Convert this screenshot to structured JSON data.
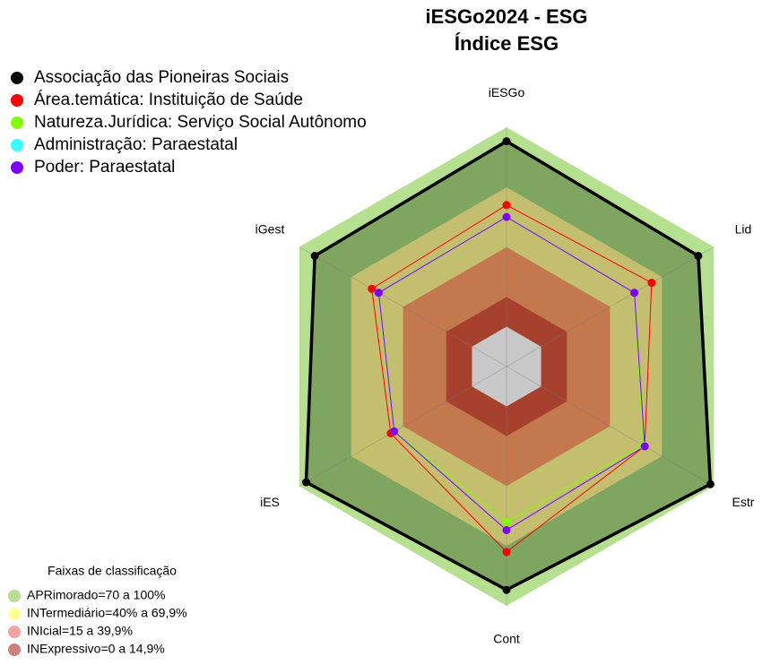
{
  "chart_data": {
    "type": "radar",
    "title": "iESGo2024 - ESG",
    "subtitle": "Índice ESG",
    "axes": [
      "iESGo",
      "Lid",
      "Estr",
      "Cont",
      "iES",
      "iGest"
    ],
    "rlim": [
      -20,
      100
    ],
    "series": [
      {
        "name": "Associação das Pioneiras Sociais",
        "color": "#000000",
        "values": [
          93,
          91,
          98,
          92,
          96,
          91
        ]
      },
      {
        "name": "Área.temática: Instituição de Saúde",
        "color": "#ff0000",
        "values": [
          61,
          64,
          60,
          73,
          47,
          58
        ]
      },
      {
        "name": "Natureza.Jurídica: Serviço Social Autônomo",
        "color": "#80ff00",
        "values": [
          55,
          54,
          59,
          58,
          45,
          54
        ]
      },
      {
        "name": "Administração: Paraestatal",
        "color": "#33ffff",
        "values": [
          55,
          54,
          60,
          62,
          45,
          54
        ]
      },
      {
        "name": "Poder: Paraestatal",
        "color": "#8000ff",
        "values": [
          55,
          54,
          60,
          62,
          45,
          54
        ]
      }
    ],
    "bands_title": "Faixas de classificação",
    "bands": [
      {
        "label": "APRimorado=70 a 100%",
        "from": 70,
        "to": 100,
        "color": "#b5e08f",
        "fill": "#b5e08f"
      },
      {
        "label": "INTermediário=40% a 69,9%",
        "from": 40,
        "to": 69.9,
        "color": "#ffff99",
        "fill": "#c4bf6e"
      },
      {
        "label": "INIcial=15 a 39,9%",
        "from": 15,
        "to": 39.9,
        "color": "#f4a3a3",
        "fill": "#c3784e"
      },
      {
        "label": "INExpressivo=0 a 14,9%",
        "from": 0,
        "to": 14.9,
        "color": "#d07f7f",
        "fill": "#a6412d"
      }
    ]
  }
}
